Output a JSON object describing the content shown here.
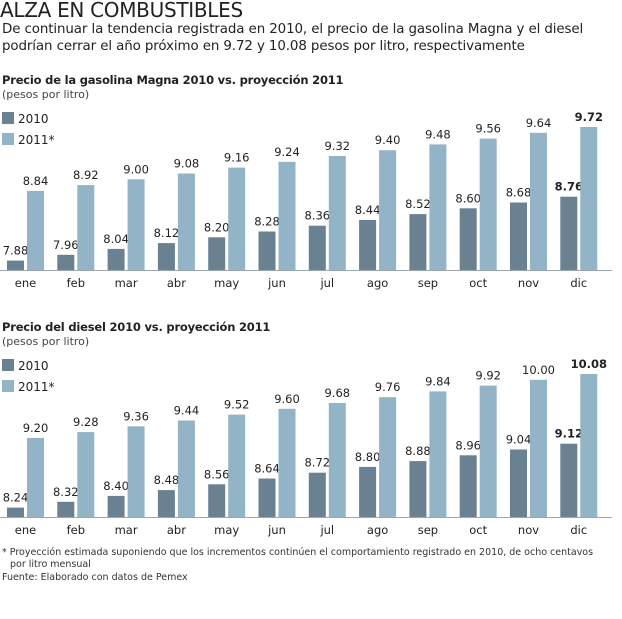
{
  "headline": "ALZA EN COMBUSTIBLES",
  "lede": "De continuar la tendencia registrada en 2010, el precio de la gasolina Magna y el diesel podrían cerrar el año próximo en 9.72 y 10.08 pesos por litro, respectivamente",
  "footnote_line1": "* Proyección estimada suponiendo que los incrementos continúen el comportamiento registrado en 2010, de ocho centavos",
  "footnote_line2": "por litro mensual",
  "source": "Fuente: Elaborado con datos de Pemex",
  "colors": {
    "series_2010": "#6a8191",
    "series_2011": "#93b3c6"
  },
  "chart_data": [
    {
      "type": "bar",
      "title": "Precio de la gasolina Magna 2010 vs. proyección 2011",
      "unit": "(pesos por litro)",
      "categories": [
        "ene",
        "feb",
        "mar",
        "abr",
        "may",
        "jun",
        "jul",
        "ago",
        "sep",
        "oct",
        "nov",
        "dic"
      ],
      "series": [
        {
          "name": "2010",
          "values": [
            7.88,
            7.96,
            8.04,
            8.12,
            8.2,
            8.28,
            8.36,
            8.44,
            8.52,
            8.6,
            8.68,
            8.76
          ]
        },
        {
          "name": "2011*",
          "values": [
            8.84,
            8.92,
            9.0,
            9.08,
            9.16,
            9.24,
            9.32,
            9.4,
            9.48,
            9.56,
            9.64,
            9.72
          ]
        }
      ],
      "legend": "top-left",
      "grid": false
    },
    {
      "type": "bar",
      "title": "Precio del diesel 2010 vs. proyección 2011",
      "unit": "(pesos por litro)",
      "categories": [
        "ene",
        "feb",
        "mar",
        "abr",
        "may",
        "jun",
        "jul",
        "ago",
        "sep",
        "oct",
        "nov",
        "dic"
      ],
      "series": [
        {
          "name": "2010",
          "values": [
            8.24,
            8.32,
            8.4,
            8.48,
            8.56,
            8.64,
            8.72,
            8.8,
            8.88,
            8.96,
            9.04,
            9.12
          ]
        },
        {
          "name": "2011*",
          "values": [
            9.2,
            9.28,
            9.36,
            9.44,
            9.52,
            9.6,
            9.68,
            9.76,
            9.84,
            9.92,
            10.0,
            10.08
          ]
        }
      ],
      "legend": "top-left",
      "grid": false
    }
  ]
}
